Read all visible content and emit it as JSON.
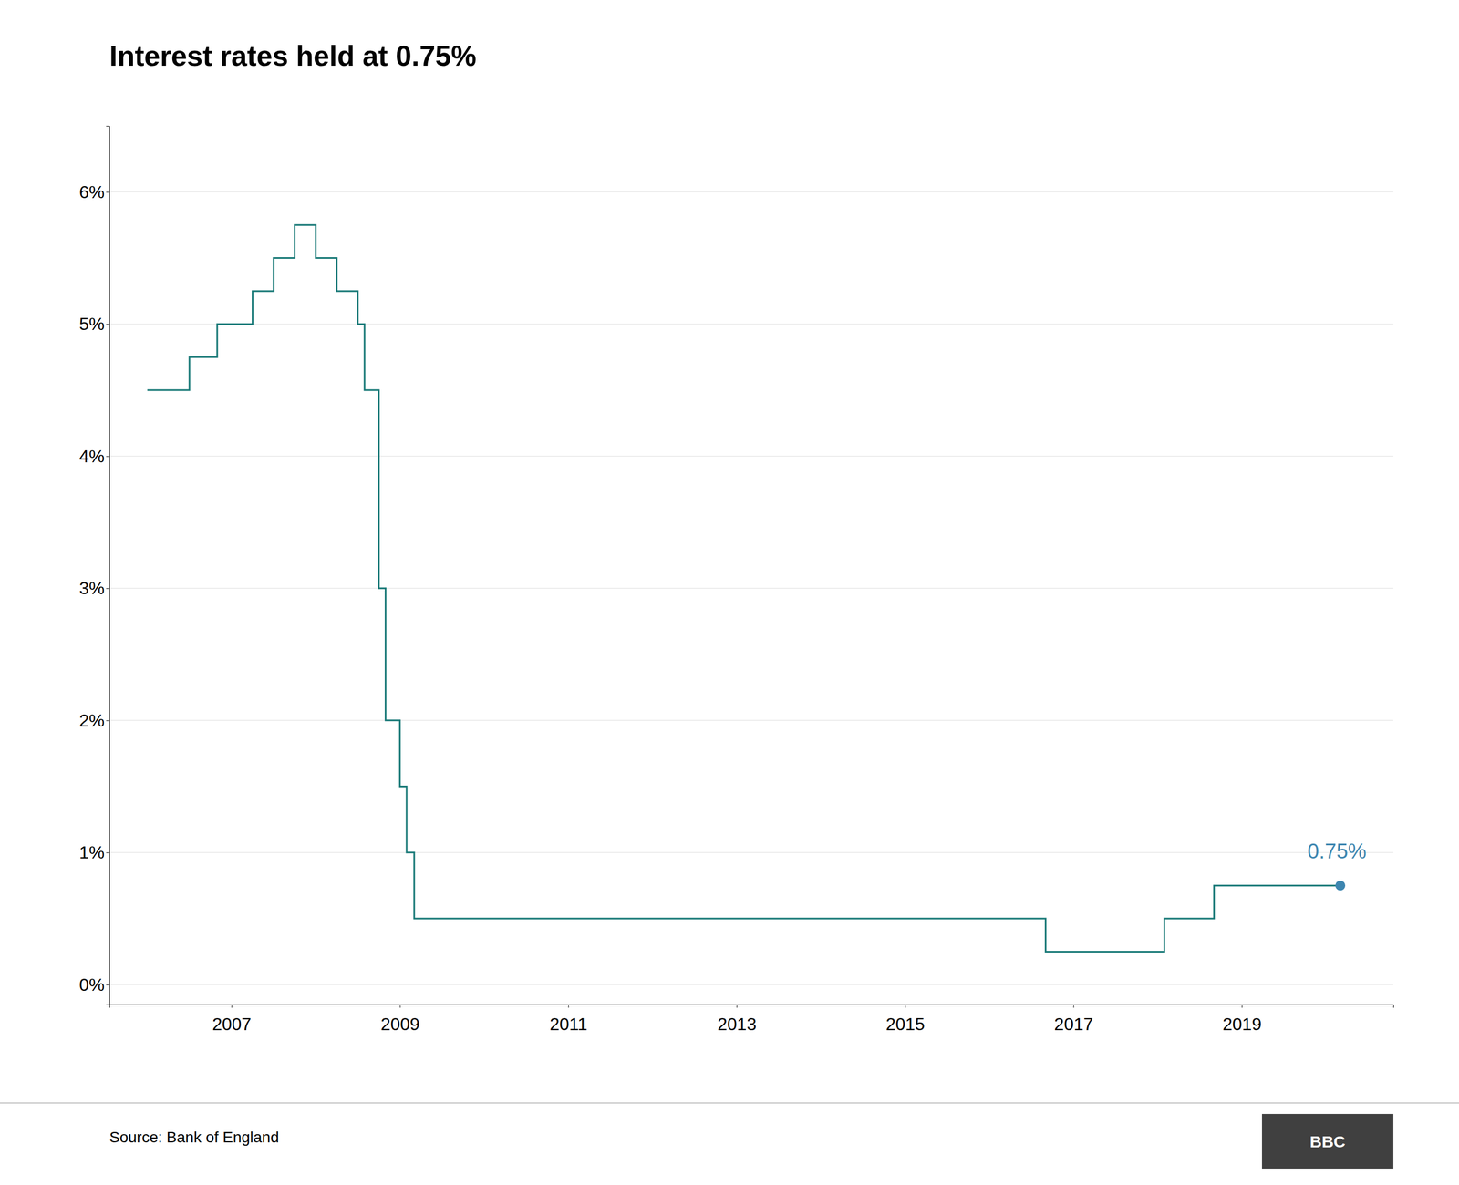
{
  "chart_data": {
    "type": "step",
    "title": "Interest rates held at 0.75%",
    "source": "Source: Bank of England",
    "logo": "BBC",
    "color": "#1a7a78",
    "x": [
      2006.0,
      2006.25,
      2006.5,
      2006.83,
      2007.0,
      2007.25,
      2007.42,
      2007.5,
      2007.67,
      2007.75,
      2007.92,
      2008.0,
      2008.25,
      2008.42,
      2008.5,
      2008.58,
      2008.67,
      2008.75,
      2008.83,
      2008.92,
      2009.0,
      2009.08,
      2009.17,
      2009.25,
      2016.33,
      2016.67,
      2017.75,
      2018.08,
      2018.58,
      2018.67,
      2019.92,
      2020.17
    ],
    "values": [
      4.5,
      4.5,
      4.75,
      5.0,
      5.0,
      5.25,
      5.25,
      5.5,
      5.5,
      5.75,
      5.75,
      5.5,
      5.25,
      5.25,
      5.0,
      4.5,
      4.5,
      3.0,
      2.0,
      2.0,
      1.5,
      1.0,
      0.5,
      0.5,
      0.5,
      0.25,
      0.25,
      0.5,
      0.5,
      0.75,
      0.75,
      0.75
    ],
    "xlim": [
      2005.55,
      2020.8
    ],
    "xticks": [
      2007,
      2009,
      2011,
      2013,
      2015,
      2017,
      2019
    ],
    "ylim": [
      -0.15,
      6.5
    ],
    "yticks": [
      {
        "value": 0,
        "label": "0%"
      },
      {
        "value": 1,
        "label": "1%"
      },
      {
        "value": 2,
        "label": "2%"
      },
      {
        "value": 3,
        "label": "3%"
      },
      {
        "value": 4,
        "label": "4%"
      },
      {
        "value": 5,
        "label": "5%"
      },
      {
        "value": 6,
        "label": "6%"
      }
    ],
    "grid": true,
    "annotations": [
      {
        "text": "0.75%",
        "x": 2020.17,
        "y": 0.75,
        "color": "#3d86b0"
      }
    ]
  }
}
